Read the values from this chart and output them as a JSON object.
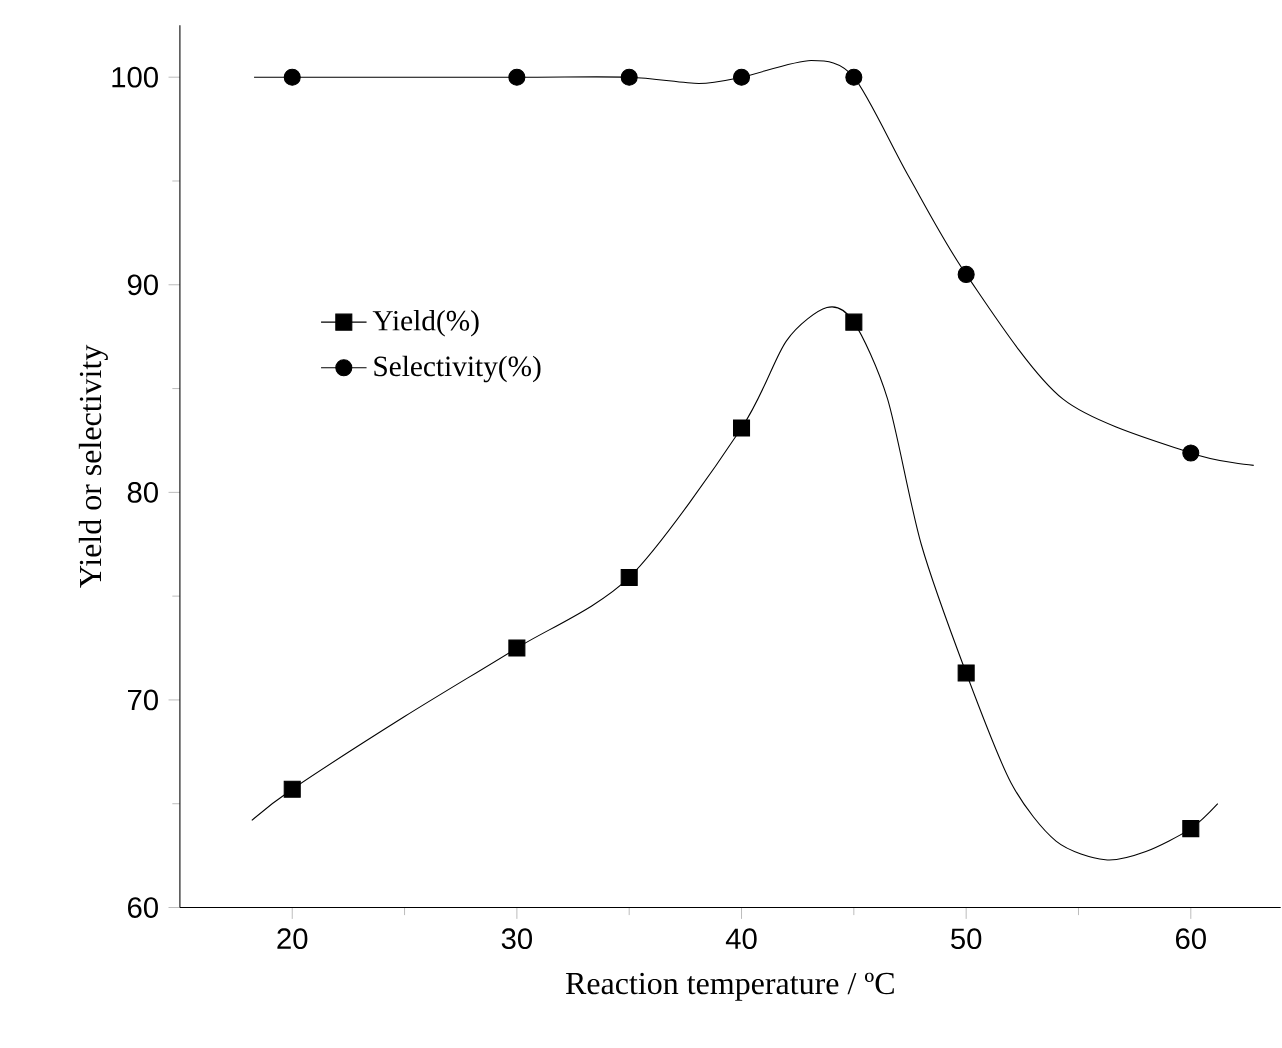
{
  "chart_data": {
    "type": "scatter",
    "xlabel": "Reaction temperature  / ºC",
    "ylabel": "Yield or selectivity",
    "xlim": [
      15,
      64
    ],
    "ylim": [
      60,
      102.5
    ],
    "xticks": [
      20,
      30,
      40,
      50,
      60
    ],
    "yticks": [
      60,
      70,
      80,
      90,
      100
    ],
    "legend": "left",
    "marker": "square",
    "grid": false,
    "series": [
      {
        "name": "Yield(%)",
        "color": "#000000",
        "x": [
          20,
          30,
          35,
          40,
          45,
          50,
          60
        ],
        "values": [
          65.7,
          72.5,
          75.9,
          83.1,
          88.2,
          71.3,
          63.8
        ]
      },
      {
        "name": "Selectivity(%)",
        "marker": "circle",
        "color": "#000000",
        "x": [
          20,
          30,
          35,
          40,
          45,
          50,
          60
        ],
        "values": [
          100,
          100,
          100,
          100,
          100,
          90.5,
          81.9
        ]
      },
      {
        "type": "line",
        "marker": "none",
        "color": "#000000",
        "x": [
          18.2,
          20,
          25,
          30,
          35,
          40,
          42,
          43.8,
          45,
          46.5,
          48,
          50,
          52,
          54,
          56.2,
          58,
          60,
          61.2
        ],
        "values": [
          64.2,
          65.7,
          69.2,
          72.5,
          75.9,
          83.1,
          87.3,
          88.9,
          88.2,
          84.5,
          77.5,
          71.3,
          66.0,
          63.2,
          62.3,
          62.7,
          63.8,
          65.0
        ]
      },
      {
        "type": "line",
        "marker": "none",
        "color": "#000000",
        "x": [
          18.3,
          20,
          30,
          35,
          38.1,
          40,
          43.1,
          45,
          47.4,
          50,
          54.3,
          60,
          62.8
        ],
        "values": [
          100,
          100,
          100,
          100,
          99.7,
          100,
          100.8,
          100,
          95.3,
          90.5,
          84.5,
          81.9,
          81.3
        ]
      }
    ]
  }
}
